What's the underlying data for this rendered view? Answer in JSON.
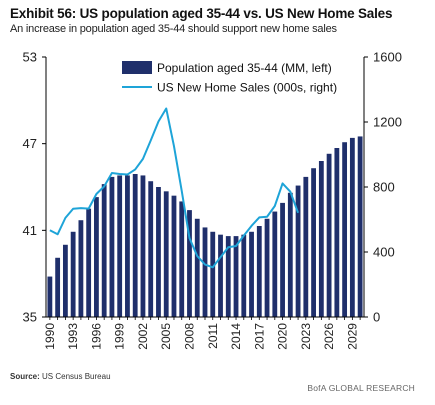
{
  "header": {
    "title": "Exhibit 56: US population aged 35-44 vs. US New Home Sales",
    "subtitle": "An increase in population aged 35-44 should support new home sales"
  },
  "footer": {
    "source_label": "Source:",
    "source_text": "US Census Bureau",
    "credit": "BofA GLOBAL RESEARCH"
  },
  "colors": {
    "bars": "#1f2f6b",
    "line": "#1ea4d8",
    "axis": "#000000"
  },
  "chart_data": {
    "type": "bar",
    "title": "Exhibit 56: US population aged 35-44 vs. US New Home Sales",
    "subtitle": "An increase in population aged 35-44 should support new home sales",
    "x": [
      1990,
      1991,
      1992,
      1993,
      1994,
      1995,
      1996,
      1997,
      1998,
      1999,
      2000,
      2001,
      2002,
      2003,
      2004,
      2005,
      2006,
      2007,
      2008,
      2009,
      2010,
      2011,
      2012,
      2013,
      2014,
      2015,
      2016,
      2017,
      2018,
      2019,
      2020,
      2021,
      2022,
      2023,
      2024,
      2025,
      2026,
      2027,
      2028,
      2029,
      2030
    ],
    "x_tick_labels": [
      "1990",
      "1993",
      "1996",
      "1999",
      "2002",
      "2005",
      "2008",
      "2011",
      "2014",
      "2017",
      "2020",
      "2023",
      "2026",
      "2029"
    ],
    "series": [
      {
        "name": "Population aged 35-44 (MM, left)",
        "type": "bar",
        "axis": "left",
        "values": [
          37.8,
          39.1,
          40.0,
          40.9,
          41.7,
          42.5,
          43.3,
          44.2,
          44.7,
          44.8,
          44.8,
          44.9,
          44.8,
          44.4,
          44.0,
          43.7,
          43.4,
          43.0,
          42.4,
          41.8,
          41.2,
          40.9,
          40.7,
          40.6,
          40.6,
          40.7,
          40.9,
          41.3,
          41.8,
          42.3,
          42.9,
          43.6,
          44.1,
          44.7,
          45.3,
          45.8,
          46.3,
          46.7,
          47.1,
          47.4,
          47.5
        ]
      },
      {
        "name": "US New Home Sales (000s, right)",
        "type": "line",
        "axis": "right",
        "values": [
          534,
          509,
          610,
          666,
          670,
          667,
          757,
          804,
          886,
          880,
          877,
          908,
          973,
          1086,
          1203,
          1283,
          1051,
          776,
          485,
          375,
          323,
          306,
          368,
          429,
          437,
          501,
          561,
          613,
          617,
          683,
          822,
          771,
          641,
          null,
          null,
          null,
          null,
          null,
          null,
          null,
          null
        ]
      }
    ],
    "ylim_left": [
      35,
      53
    ],
    "yticks_left": [
      35,
      41,
      47,
      53
    ],
    "ylim_right": [
      0,
      1600
    ],
    "yticks_right": [
      0,
      400,
      800,
      1200,
      1600
    ],
    "grid": false,
    "legend": "top"
  }
}
